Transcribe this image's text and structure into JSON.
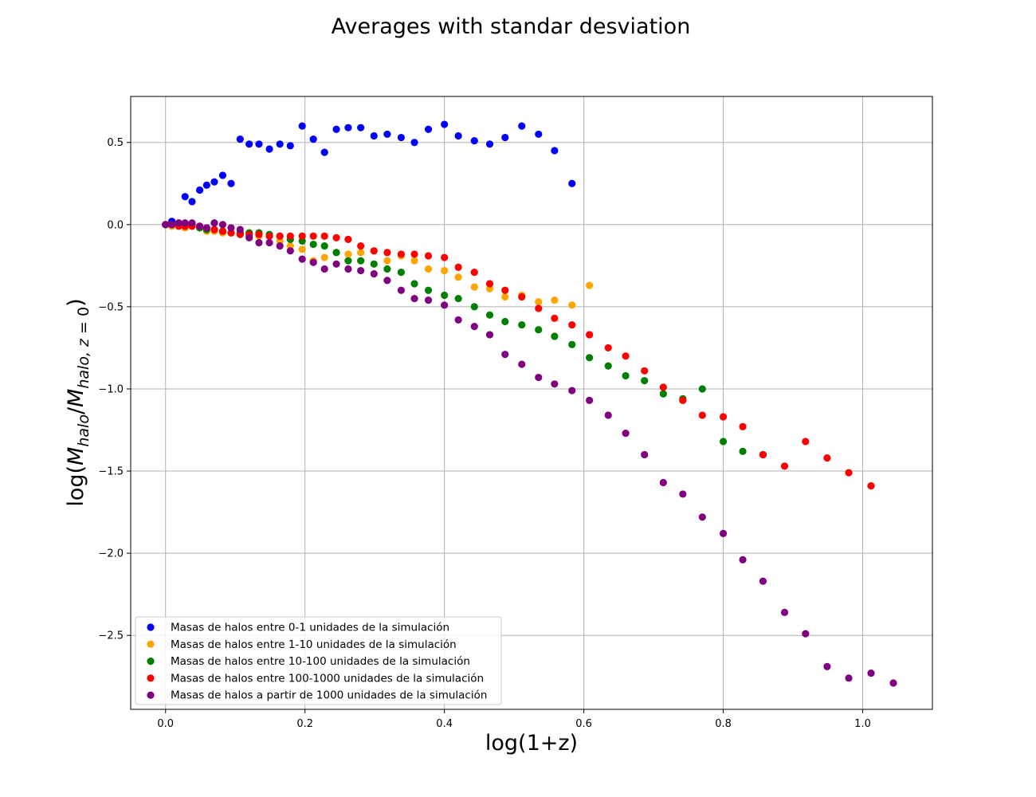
{
  "chart_data": {
    "type": "scatter",
    "title": "Averages with standar desviation",
    "xlabel": "log(1+z)",
    "ylabel": {
      "pre": "log(",
      "m1": "M",
      "sub1": "halo",
      "slash": "/",
      "m2": "M",
      "sub2": "halo, z",
      "eq": " = 0",
      "post": ")"
    },
    "xlim": [
      -0.05,
      1.1
    ],
    "ylim": [
      -2.95,
      0.78
    ],
    "xticks": [
      0.0,
      0.2,
      0.4,
      0.6,
      0.8,
      1.0
    ],
    "xtick_labels": [
      "0.0",
      "0.2",
      "0.4",
      "0.6",
      "0.8",
      "1.0"
    ],
    "yticks": [
      0.5,
      0.0,
      -0.5,
      -1.0,
      -1.5,
      -2.0,
      -2.5
    ],
    "ytick_labels": [
      "0.5",
      "0.0",
      "−0.5",
      "−1.0",
      "−1.5",
      "−2.0",
      "−2.5"
    ],
    "grid": true,
    "legend_position": "lower-left",
    "series": [
      {
        "name": "Masas de halos entre 0-1 unidades de la simulación",
        "color": "#0000ff",
        "points": [
          [
            0.0,
            0.0
          ],
          [
            0.009,
            0.02
          ],
          [
            0.019,
            0.01
          ],
          [
            0.028,
            0.17
          ],
          [
            0.038,
            0.14
          ],
          [
            0.049,
            0.21
          ],
          [
            0.059,
            0.24
          ],
          [
            0.07,
            0.26
          ],
          [
            0.082,
            0.3
          ],
          [
            0.094,
            0.25
          ],
          [
            0.107,
            0.52
          ],
          [
            0.12,
            0.49
          ],
          [
            0.134,
            0.49
          ],
          [
            0.149,
            0.46
          ],
          [
            0.164,
            0.49
          ],
          [
            0.179,
            0.48
          ],
          [
            0.196,
            0.6
          ],
          [
            0.212,
            0.52
          ],
          [
            0.228,
            0.44
          ],
          [
            0.245,
            0.58
          ],
          [
            0.262,
            0.59
          ],
          [
            0.28,
            0.59
          ],
          [
            0.299,
            0.54
          ],
          [
            0.318,
            0.55
          ],
          [
            0.338,
            0.53
          ],
          [
            0.357,
            0.5
          ],
          [
            0.377,
            0.58
          ],
          [
            0.4,
            0.61
          ],
          [
            0.42,
            0.54
          ],
          [
            0.443,
            0.51
          ],
          [
            0.465,
            0.49
          ],
          [
            0.487,
            0.53
          ],
          [
            0.511,
            0.6
          ],
          [
            0.535,
            0.55
          ],
          [
            0.558,
            0.45
          ],
          [
            0.583,
            0.25
          ]
        ]
      },
      {
        "name": "Masas de halos entre 1-10 unidades de la simulación",
        "color": "#ffa500",
        "points": [
          [
            0.0,
            0.0
          ],
          [
            0.009,
            -0.01
          ],
          [
            0.019,
            -0.01
          ],
          [
            0.028,
            -0.02
          ],
          [
            0.038,
            -0.01
          ],
          [
            0.049,
            -0.01
          ],
          [
            0.059,
            -0.04
          ],
          [
            0.07,
            -0.04
          ],
          [
            0.082,
            -0.05
          ],
          [
            0.094,
            -0.05
          ],
          [
            0.107,
            -0.06
          ],
          [
            0.12,
            -0.07
          ],
          [
            0.134,
            -0.07
          ],
          [
            0.149,
            -0.07
          ],
          [
            0.164,
            -0.1
          ],
          [
            0.179,
            -0.13
          ],
          [
            0.196,
            -0.15
          ],
          [
            0.212,
            -0.22
          ],
          [
            0.228,
            -0.2
          ],
          [
            0.245,
            -0.17
          ],
          [
            0.262,
            -0.18
          ],
          [
            0.28,
            -0.17
          ],
          [
            0.299,
            -0.16
          ],
          [
            0.318,
            -0.22
          ],
          [
            0.338,
            -0.19
          ],
          [
            0.357,
            -0.22
          ],
          [
            0.377,
            -0.27
          ],
          [
            0.4,
            -0.28
          ],
          [
            0.42,
            -0.32
          ],
          [
            0.443,
            -0.38
          ],
          [
            0.465,
            -0.39
          ],
          [
            0.487,
            -0.44
          ],
          [
            0.511,
            -0.43
          ],
          [
            0.535,
            -0.47
          ],
          [
            0.558,
            -0.46
          ],
          [
            0.583,
            -0.49
          ],
          [
            0.608,
            -0.37
          ]
        ]
      },
      {
        "name": "Masas de halos entre 10-100 unidades de la simulación",
        "color": "#008000",
        "points": [
          [
            0.0,
            0.0
          ],
          [
            0.009,
            0.0
          ],
          [
            0.019,
            0.0
          ],
          [
            0.028,
            -0.01
          ],
          [
            0.038,
            0.0
          ],
          [
            0.049,
            -0.02
          ],
          [
            0.059,
            -0.03
          ],
          [
            0.07,
            -0.03
          ],
          [
            0.082,
            -0.04
          ],
          [
            0.094,
            -0.05
          ],
          [
            0.107,
            -0.05
          ],
          [
            0.12,
            -0.05
          ],
          [
            0.134,
            -0.05
          ],
          [
            0.149,
            -0.06
          ],
          [
            0.164,
            -0.07
          ],
          [
            0.179,
            -0.09
          ],
          [
            0.196,
            -0.1
          ],
          [
            0.212,
            -0.12
          ],
          [
            0.228,
            -0.13
          ],
          [
            0.245,
            -0.17
          ],
          [
            0.262,
            -0.22
          ],
          [
            0.28,
            -0.22
          ],
          [
            0.299,
            -0.24
          ],
          [
            0.318,
            -0.27
          ],
          [
            0.338,
            -0.29
          ],
          [
            0.357,
            -0.36
          ],
          [
            0.377,
            -0.4
          ],
          [
            0.4,
            -0.43
          ],
          [
            0.42,
            -0.45
          ],
          [
            0.443,
            -0.5
          ],
          [
            0.465,
            -0.55
          ],
          [
            0.487,
            -0.59
          ],
          [
            0.511,
            -0.61
          ],
          [
            0.535,
            -0.64
          ],
          [
            0.558,
            -0.68
          ],
          [
            0.583,
            -0.73
          ],
          [
            0.608,
            -0.81
          ],
          [
            0.635,
            -0.86
          ],
          [
            0.66,
            -0.92
          ],
          [
            0.687,
            -0.95
          ],
          [
            0.714,
            -1.03
          ],
          [
            0.742,
            -1.06
          ],
          [
            0.77,
            -1.0
          ],
          [
            0.8,
            -1.32
          ],
          [
            0.828,
            -1.38
          ],
          [
            0.857,
            -1.4
          ]
        ]
      },
      {
        "name": "Masas de halos entre 100-1000 unidades de la simulación",
        "color": "#ff0000",
        "points": [
          [
            0.0,
            0.0
          ],
          [
            0.009,
            0.0
          ],
          [
            0.019,
            -0.01
          ],
          [
            0.028,
            -0.01
          ],
          [
            0.038,
            -0.01
          ],
          [
            0.049,
            -0.01
          ],
          [
            0.059,
            -0.02
          ],
          [
            0.07,
            -0.03
          ],
          [
            0.082,
            -0.04
          ],
          [
            0.094,
            -0.05
          ],
          [
            0.107,
            -0.06
          ],
          [
            0.12,
            -0.06
          ],
          [
            0.134,
            -0.06
          ],
          [
            0.149,
            -0.07
          ],
          [
            0.164,
            -0.07
          ],
          [
            0.179,
            -0.07
          ],
          [
            0.196,
            -0.07
          ],
          [
            0.212,
            -0.07
          ],
          [
            0.228,
            -0.07
          ],
          [
            0.245,
            -0.08
          ],
          [
            0.262,
            -0.09
          ],
          [
            0.28,
            -0.13
          ],
          [
            0.299,
            -0.16
          ],
          [
            0.318,
            -0.17
          ],
          [
            0.338,
            -0.18
          ],
          [
            0.357,
            -0.18
          ],
          [
            0.377,
            -0.19
          ],
          [
            0.4,
            -0.2
          ],
          [
            0.42,
            -0.26
          ],
          [
            0.443,
            -0.29
          ],
          [
            0.465,
            -0.36
          ],
          [
            0.487,
            -0.4
          ],
          [
            0.511,
            -0.44
          ],
          [
            0.535,
            -0.51
          ],
          [
            0.558,
            -0.57
          ],
          [
            0.583,
            -0.61
          ],
          [
            0.608,
            -0.67
          ],
          [
            0.635,
            -0.75
          ],
          [
            0.66,
            -0.8
          ],
          [
            0.687,
            -0.89
          ],
          [
            0.714,
            -0.99
          ],
          [
            0.742,
            -1.07
          ],
          [
            0.77,
            -1.16
          ],
          [
            0.8,
            -1.17
          ],
          [
            0.828,
            -1.23
          ],
          [
            0.857,
            -1.4
          ],
          [
            0.888,
            -1.47
          ],
          [
            0.918,
            -1.32
          ],
          [
            0.949,
            -1.42
          ],
          [
            0.98,
            -1.51
          ],
          [
            1.012,
            -1.59
          ]
        ]
      },
      {
        "name": "Masas de halos a partir de 1000 unidades de la simulación",
        "color": "#800080",
        "points": [
          [
            0.0,
            0.0
          ],
          [
            0.009,
            0.0
          ],
          [
            0.019,
            0.01
          ],
          [
            0.028,
            0.01
          ],
          [
            0.038,
            0.01
          ],
          [
            0.049,
            -0.01
          ],
          [
            0.059,
            -0.02
          ],
          [
            0.07,
            0.01
          ],
          [
            0.082,
            0.0
          ],
          [
            0.094,
            -0.02
          ],
          [
            0.107,
            -0.03
          ],
          [
            0.12,
            -0.08
          ],
          [
            0.134,
            -0.11
          ],
          [
            0.149,
            -0.11
          ],
          [
            0.164,
            -0.13
          ],
          [
            0.179,
            -0.16
          ],
          [
            0.196,
            -0.21
          ],
          [
            0.212,
            -0.23
          ],
          [
            0.228,
            -0.27
          ],
          [
            0.245,
            -0.24
          ],
          [
            0.262,
            -0.27
          ],
          [
            0.28,
            -0.28
          ],
          [
            0.299,
            -0.3
          ],
          [
            0.318,
            -0.34
          ],
          [
            0.338,
            -0.4
          ],
          [
            0.357,
            -0.45
          ],
          [
            0.377,
            -0.46
          ],
          [
            0.4,
            -0.49
          ],
          [
            0.42,
            -0.58
          ],
          [
            0.443,
            -0.62
          ],
          [
            0.465,
            -0.67
          ],
          [
            0.487,
            -0.79
          ],
          [
            0.511,
            -0.85
          ],
          [
            0.535,
            -0.93
          ],
          [
            0.558,
            -0.97
          ],
          [
            0.583,
            -1.01
          ],
          [
            0.608,
            -1.07
          ],
          [
            0.635,
            -1.16
          ],
          [
            0.66,
            -1.27
          ],
          [
            0.687,
            -1.4
          ],
          [
            0.714,
            -1.57
          ],
          [
            0.742,
            -1.64
          ],
          [
            0.77,
            -1.78
          ],
          [
            0.8,
            -1.88
          ],
          [
            0.828,
            -2.04
          ],
          [
            0.857,
            -2.17
          ],
          [
            0.888,
            -2.36
          ],
          [
            0.918,
            -2.49
          ],
          [
            0.949,
            -2.69
          ],
          [
            0.98,
            -2.76
          ],
          [
            1.012,
            -2.73
          ],
          [
            1.044,
            -2.79
          ]
        ]
      }
    ]
  }
}
